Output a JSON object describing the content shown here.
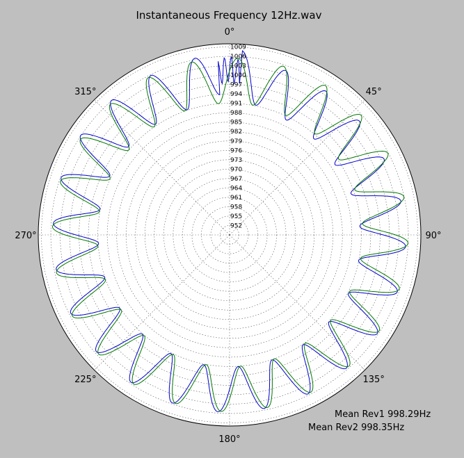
{
  "chart_data": {
    "type": "polar-line",
    "title": "Instantaneous Frequency  12Hz.wav",
    "theta_direction": "clockwise",
    "theta_zero": "top",
    "angle_ticks": [
      {
        "deg": 0,
        "label": "0°"
      },
      {
        "deg": 45,
        "label": "45°"
      },
      {
        "deg": 90,
        "label": "90°"
      },
      {
        "deg": 135,
        "label": "135°"
      },
      {
        "deg": 180,
        "label": "180°"
      },
      {
        "deg": 225,
        "label": "225°"
      },
      {
        "deg": 270,
        "label": "270°"
      },
      {
        "deg": 315,
        "label": "315°"
      }
    ],
    "r_ticks": [
      952,
      955,
      958,
      961,
      964,
      967,
      970,
      973,
      976,
      979,
      982,
      985,
      988,
      991,
      994,
      997,
      1000,
      1003,
      1006,
      1009
    ],
    "r_tick_labels": [
      "952",
      "955",
      "958",
      "961",
      "964",
      "967",
      "970",
      "973",
      "976",
      "979",
      "982",
      "985",
      "988",
      "991",
      "994",
      "997",
      "1000",
      "1003",
      "1006",
      "1009"
    ],
    "rlim": [
      949,
      1010
    ],
    "grid": true,
    "series": [
      {
        "color": "#0000cc",
        "mean": 998.29,
        "ripple_cycles": 24,
        "theta_deg": [
          0,
          15,
          30,
          45,
          60,
          75,
          90,
          105,
          120,
          135,
          150,
          165,
          180,
          195,
          210,
          225,
          240,
          255,
          270,
          285,
          300,
          315,
          330,
          345,
          360
        ],
        "r": [
          1002,
          997.3,
          997.0,
          997.0,
          996.5,
          997.3,
          998.0,
          998.2,
          998.5,
          998.3,
          998.4,
          998.3,
          998.3,
          998.5,
          998.4,
          998.3,
          998.3,
          998.2,
          998.0,
          998.4,
          998.9,
          999.0,
          998.6,
          998.3,
          1002
        ]
      },
      {
        "color": "#007700",
        "mean": 998.35,
        "ripple_cycles": 24,
        "theta_deg": [
          0,
          15,
          30,
          45,
          60,
          75,
          90,
          105,
          120,
          135,
          150,
          165,
          180,
          195,
          210,
          225,
          240,
          255,
          270,
          285,
          300,
          315,
          330,
          345,
          360
        ],
        "r": [
          998.2,
          998.3,
          998.4,
          998.5,
          998.6,
          998.7,
          998.8,
          998.6,
          998.5,
          998.4,
          998.3,
          998.2,
          998.2,
          998.3,
          998.4,
          998.3,
          998.2,
          998.3,
          998.3,
          998.4,
          998.3,
          998.2,
          998.3,
          998.3,
          998.2
        ]
      }
    ],
    "annotations": [
      "Mean Rev1 998.29Hz",
      "Mean Rev2 998.35Hz"
    ]
  }
}
